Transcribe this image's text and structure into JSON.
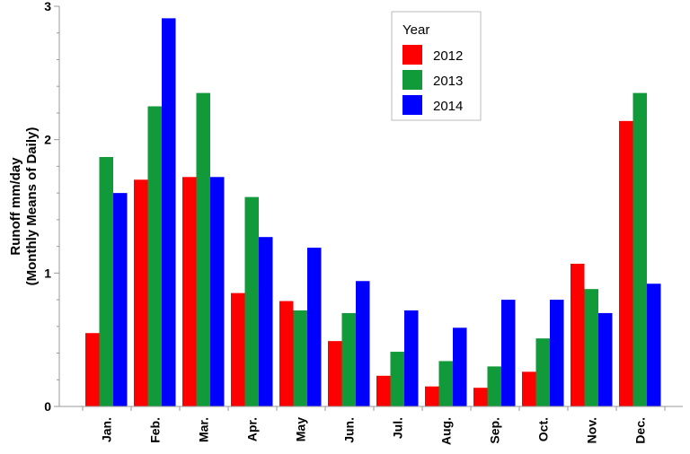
{
  "chart_data": {
    "type": "bar",
    "title": "",
    "ylabel_lines": [
      "Runoff mm/day",
      "(Monthly Means of Daily)"
    ],
    "xlabel": "",
    "ylim": [
      0,
      3
    ],
    "yticks": [
      0,
      1,
      2,
      3
    ],
    "grid": false,
    "legend": {
      "title": "Year",
      "position": "top-right"
    },
    "categories": [
      "Jan.",
      "Feb.",
      "Mar.",
      "Apr.",
      "May",
      "Jun.",
      "Jul.",
      "Aug.",
      "Sep.",
      "Oct.",
      "Nov.",
      "Dec."
    ],
    "series": [
      {
        "name": "2012",
        "color": "#ff0000",
        "values": [
          0.55,
          1.7,
          1.72,
          0.85,
          0.79,
          0.49,
          0.23,
          0.15,
          0.14,
          0.26,
          1.07,
          2.14
        ]
      },
      {
        "name": "2013",
        "color": "#109a3a",
        "values": [
          1.87,
          2.25,
          2.35,
          1.57,
          0.72,
          0.7,
          0.41,
          0.34,
          0.3,
          0.51,
          0.88,
          2.35
        ]
      },
      {
        "name": "2014",
        "color": "#0000ff",
        "values": [
          1.6,
          2.91,
          1.72,
          1.27,
          1.19,
          0.94,
          0.72,
          0.59,
          0.8,
          0.8,
          0.7,
          0.92
        ]
      }
    ]
  }
}
